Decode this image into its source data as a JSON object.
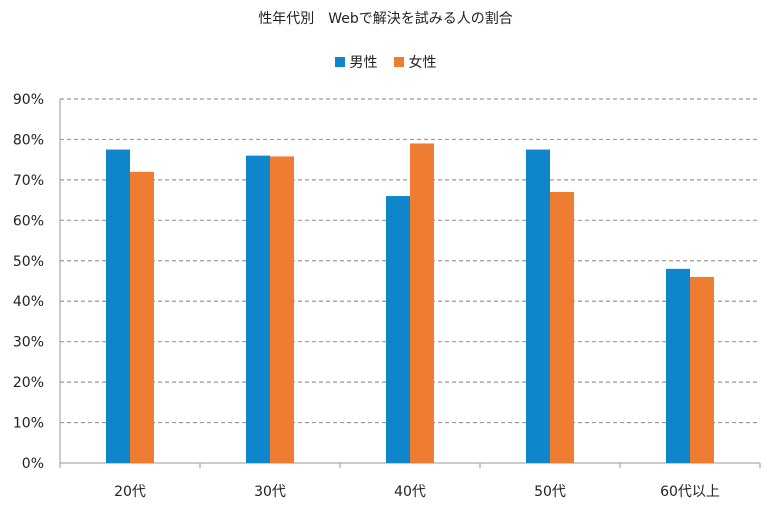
{
  "chart_data": {
    "type": "bar",
    "title": "性年代別　Webで解決を試みる人の割合",
    "categories": [
      "20代",
      "30代",
      "40代",
      "50代",
      "60代以上"
    ],
    "series": [
      {
        "name": "男性",
        "color": "#0f86cc",
        "values": [
          77.5,
          76,
          66,
          77.5,
          48
        ]
      },
      {
        "name": "女性",
        "color": "#ee7d31",
        "values": [
          72,
          75.8,
          79,
          67,
          46
        ]
      }
    ],
    "ylim": [
      0,
      90
    ],
    "yticks": [
      "0%",
      "10%",
      "20%",
      "30%",
      "40%",
      "50%",
      "60%",
      "70%",
      "80%",
      "90%"
    ],
    "grid": true,
    "gridline_color": "#999999",
    "legend_position": "top"
  }
}
